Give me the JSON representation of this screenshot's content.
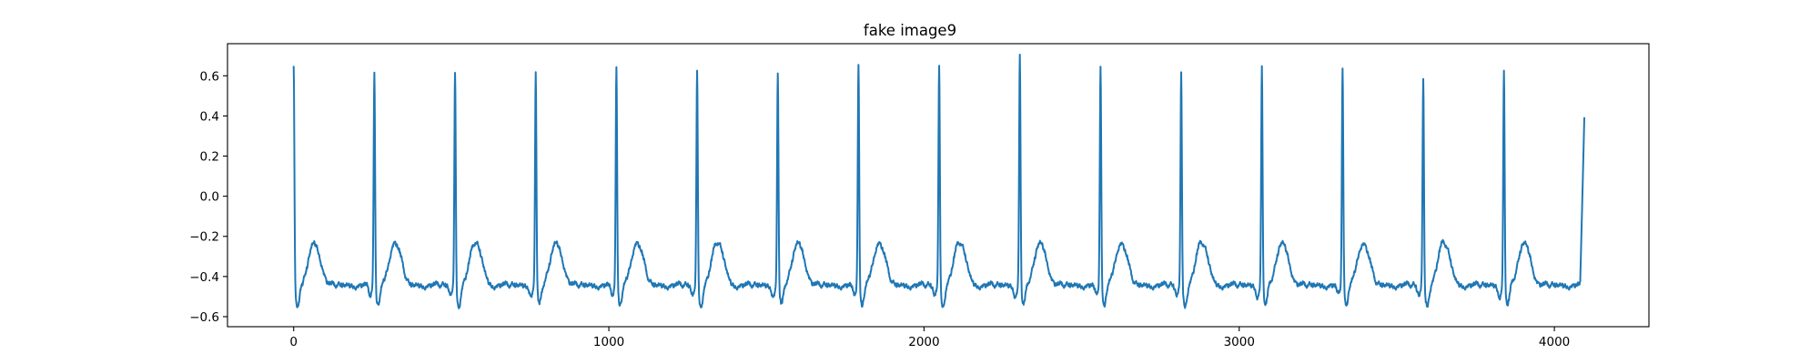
{
  "chart_data": {
    "type": "line",
    "title": "fake image9",
    "xlabel": "",
    "ylabel": "",
    "xlim": [
      -210,
      4300
    ],
    "ylim": [
      -0.65,
      0.76
    ],
    "x_ticks": [
      0,
      1000,
      2000,
      3000,
      4000
    ],
    "x_tick_labels": [
      "0",
      "1000",
      "2000",
      "3000",
      "4000"
    ],
    "y_ticks": [
      -0.6,
      -0.4,
      -0.2,
      0.0,
      0.2,
      0.4,
      0.6
    ],
    "y_tick_labels": [
      "−0.6",
      "−0.4",
      "−0.2",
      "0.0",
      "0.2",
      "0.4",
      "0.6"
    ],
    "grid": false,
    "legend": "none",
    "series": [
      {
        "color": "#1f77b4",
        "sample_count": 4096,
        "baseline": -0.45,
        "end_value": 0.39,
        "beats": [
          {
            "x": 0,
            "peak": 0.64
          },
          {
            "x": 256,
            "peak": 0.6
          },
          {
            "x": 512,
            "peak": 0.61
          },
          {
            "x": 768,
            "peak": 0.6
          },
          {
            "x": 1024,
            "peak": 0.62
          },
          {
            "x": 1280,
            "peak": 0.62
          },
          {
            "x": 1536,
            "peak": 0.61
          },
          {
            "x": 1792,
            "peak": 0.63
          },
          {
            "x": 2048,
            "peak": 0.65
          },
          {
            "x": 2304,
            "peak": 0.7
          },
          {
            "x": 2560,
            "peak": 0.63
          },
          {
            "x": 2816,
            "peak": 0.6
          },
          {
            "x": 3072,
            "peak": 0.63
          },
          {
            "x": 3328,
            "peak": 0.63
          },
          {
            "x": 3584,
            "peak": 0.57
          },
          {
            "x": 3840,
            "peak": 0.61
          }
        ],
        "t_wave_peak": -0.27,
        "trough": -0.55
      }
    ]
  }
}
